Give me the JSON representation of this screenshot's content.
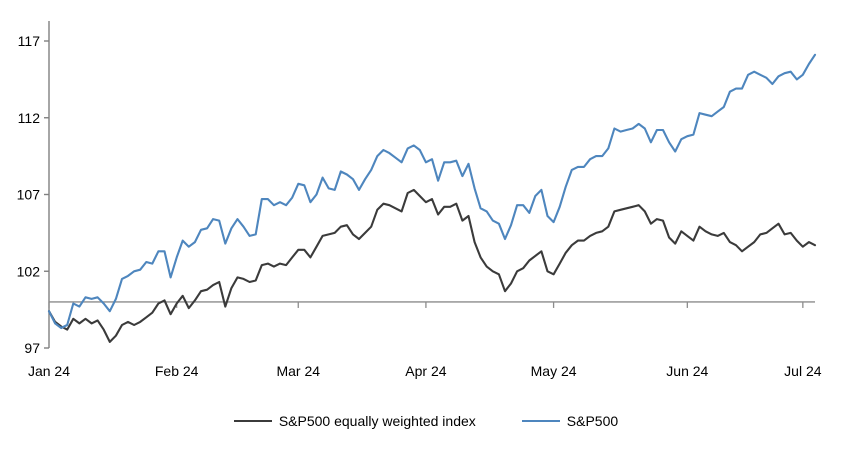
{
  "chart_data": {
    "type": "line",
    "title": "",
    "xlabel": "",
    "ylabel": "",
    "x_axis": {
      "tick_labels": [
        "Jan 24",
        "Feb 24",
        "Mar 24",
        "Apr 24",
        "May 24",
        "Jun 24",
        "Jul 24"
      ],
      "month_start_indices": [
        0,
        21,
        41,
        62,
        83,
        105,
        124
      ],
      "num_points": 127
    },
    "y_axis": {
      "ticks": [
        97,
        102,
        107,
        112,
        117
      ],
      "min": 97,
      "max": 117,
      "baseline_value": 100
    },
    "grid": "off",
    "legend_position": "bottom-center",
    "series": [
      {
        "name": "S&P500 equally weighted index",
        "color": "#3b3b3b",
        "values": [
          99.4,
          98.7,
          98.4,
          98.2,
          98.9,
          98.6,
          98.9,
          98.6,
          98.8,
          98.2,
          97.4,
          97.8,
          98.5,
          98.7,
          98.5,
          98.7,
          99.0,
          99.3,
          99.9,
          100.1,
          99.2,
          99.9,
          100.4,
          99.6,
          100.1,
          100.7,
          100.8,
          101.1,
          101.3,
          99.7,
          100.9,
          101.6,
          101.5,
          101.3,
          101.4,
          102.4,
          102.5,
          102.3,
          102.5,
          102.4,
          102.9,
          103.4,
          103.4,
          102.9,
          103.6,
          104.3,
          104.4,
          104.5,
          104.9,
          105.0,
          104.4,
          104.1,
          104.5,
          104.9,
          106.0,
          106.4,
          106.3,
          106.1,
          105.9,
          107.1,
          107.3,
          106.9,
          106.5,
          106.7,
          105.7,
          106.2,
          106.2,
          106.4,
          105.3,
          105.6,
          103.9,
          102.9,
          102.3,
          102.0,
          101.8,
          100.7,
          101.2,
          102.0,
          102.2,
          102.7,
          103.0,
          103.3,
          102.0,
          101.8,
          102.5,
          103.2,
          103.7,
          104.0,
          104.0,
          104.3,
          104.5,
          104.6,
          104.9,
          105.9,
          106.0,
          106.1,
          106.2,
          106.3,
          105.9,
          105.1,
          105.4,
          105.3,
          104.2,
          103.8,
          104.6,
          104.3,
          104.0,
          104.9,
          104.6,
          104.4,
          104.3,
          104.5,
          103.9,
          103.7,
          103.3,
          103.6,
          103.9,
          104.4,
          104.5,
          104.8,
          105.1,
          104.4,
          104.5,
          104.0,
          103.6,
          103.9,
          103.7
        ]
      },
      {
        "name": "S&P500",
        "color": "#4e86be",
        "values": [
          99.4,
          98.6,
          98.3,
          98.5,
          99.9,
          99.7,
          100.3,
          100.2,
          100.3,
          99.9,
          99.4,
          100.2,
          101.5,
          101.7,
          102.0,
          102.1,
          102.6,
          102.5,
          103.3,
          103.3,
          101.6,
          102.9,
          104.0,
          103.6,
          103.9,
          104.7,
          104.8,
          105.4,
          105.3,
          103.8,
          104.8,
          105.4,
          104.9,
          104.3,
          104.4,
          106.7,
          106.7,
          106.3,
          106.5,
          106.3,
          106.8,
          107.7,
          107.6,
          106.5,
          107.0,
          108.1,
          107.4,
          107.3,
          108.5,
          108.3,
          108.0,
          107.3,
          108.0,
          108.6,
          109.5,
          109.9,
          109.7,
          109.4,
          109.1,
          110.0,
          110.2,
          109.9,
          109.1,
          109.3,
          107.9,
          109.1,
          109.1,
          109.2,
          108.2,
          109.0,
          107.4,
          106.1,
          105.9,
          105.3,
          105.1,
          104.1,
          105.0,
          106.3,
          106.3,
          105.8,
          106.9,
          107.3,
          105.6,
          105.2,
          106.2,
          107.5,
          108.6,
          108.8,
          108.8,
          109.3,
          109.5,
          109.5,
          110.0,
          111.3,
          111.1,
          111.2,
          111.3,
          111.6,
          111.3,
          110.4,
          111.2,
          111.2,
          110.4,
          109.8,
          110.6,
          110.8,
          110.9,
          112.3,
          112.2,
          112.1,
          112.4,
          112.7,
          113.7,
          113.9,
          113.9,
          114.8,
          115.0,
          114.8,
          114.6,
          114.2,
          114.7,
          114.9,
          115.0,
          114.5,
          114.8,
          115.5,
          116.1
        ]
      }
    ]
  },
  "colors": {
    "background": "#ffffff",
    "axis": "#808080",
    "baseline": "#8c8c8c",
    "text": "#000000",
    "equal_weight_line": "#3b3b3b",
    "sp500_line": "#4e86be"
  }
}
